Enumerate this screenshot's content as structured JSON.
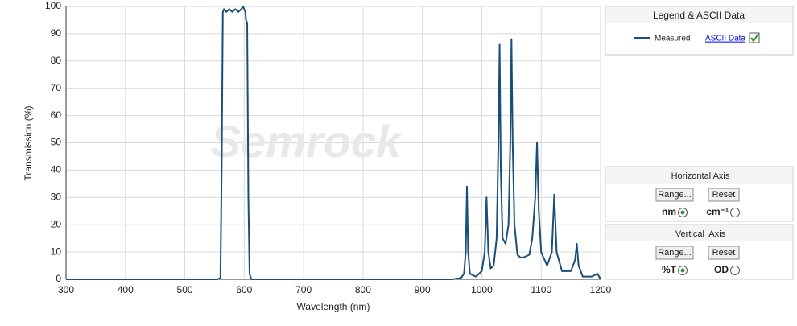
{
  "chart_data": {
    "type": "line",
    "xlabel": "Wavelength (nm)",
    "ylabel": "Transmission (%)",
    "watermark": "Semrock",
    "x": [
      300,
      555,
      560,
      562,
      564,
      566,
      570,
      575,
      580,
      585,
      590,
      595,
      598,
      600,
      602,
      603,
      605,
      607,
      609,
      612,
      950,
      965,
      970,
      973,
      975,
      977,
      980,
      990,
      1000,
      1005,
      1008,
      1011,
      1015,
      1020,
      1025,
      1028,
      1030,
      1032,
      1035,
      1040,
      1045,
      1048,
      1050,
      1052,
      1055,
      1060,
      1065,
      1070,
      1080,
      1085,
      1090,
      1093,
      1096,
      1100,
      1110,
      1118,
      1122,
      1126,
      1135,
      1150,
      1157,
      1160,
      1163,
      1170,
      1185,
      1195,
      1200
    ],
    "series": [
      {
        "name": "Measured",
        "color": "#1a4f7a",
        "values": [
          0,
          0,
          0.5,
          40,
          98,
          99,
          98,
          99,
          98,
          99,
          98,
          99,
          100,
          99,
          98,
          95,
          94,
          30,
          2,
          0,
          0,
          0.5,
          2,
          10,
          34,
          10,
          2,
          1,
          3,
          10,
          30,
          10,
          4,
          5,
          15,
          50,
          86,
          40,
          15,
          13,
          20,
          50,
          88,
          50,
          20,
          9,
          8,
          8,
          9,
          15,
          30,
          50,
          25,
          10,
          5,
          10,
          31,
          10,
          3,
          3,
          7,
          13,
          5,
          1,
          1,
          2,
          0
        ]
      }
    ],
    "xlim": [
      300,
      1200
    ],
    "xticks": [
      300,
      400,
      500,
      600,
      700,
      800,
      900,
      1000,
      1100,
      1200
    ],
    "ylim": [
      0,
      100
    ],
    "yticks": [
      0,
      10,
      20,
      30,
      40,
      50,
      60,
      70,
      80,
      90,
      100
    ],
    "grid": true
  },
  "panels": {
    "legend": {
      "title": "Legend & ASCII Data",
      "link": "ASCII Data"
    },
    "horizontal": {
      "title": "Horizontal Axis",
      "range": "Range...",
      "reset": "Reset",
      "options": [
        "nm",
        "cm⁻¹"
      ]
    },
    "vertical": {
      "title": "Vertical  Axis",
      "range": "Range...",
      "reset": "Reset",
      "options": [
        "%T",
        "OD"
      ]
    }
  }
}
